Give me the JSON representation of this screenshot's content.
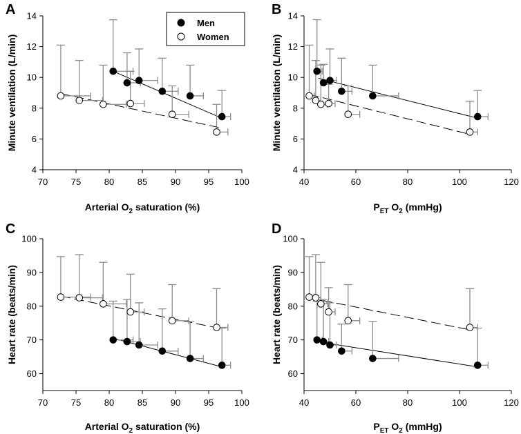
{
  "colors": {
    "men_marker": "#000000",
    "women_marker": "#ffffff",
    "error_bar": "#8c8c8c",
    "axis": "#000000"
  },
  "legend": {
    "men": "Men",
    "women": "Women",
    "placement": "top-right of panel A"
  },
  "chart_data": [
    {
      "panel": "A",
      "type": "scatter",
      "xlabel_parts": [
        "Arterial O",
        "2",
        " saturation (%)"
      ],
      "ylabel": "Minute ventilation (L/min)",
      "xlim": [
        70,
        100
      ],
      "ylim": [
        4,
        14
      ],
      "xticks": [
        70,
        75,
        80,
        85,
        90,
        95,
        100
      ],
      "yticks": [
        4,
        6,
        8,
        10,
        12,
        14
      ],
      "series": [
        {
          "name": "Men",
          "fill": "black",
          "line": "solid",
          "points": [
            {
              "x": 80.6,
              "y": 10.4,
              "y_err": 3.35,
              "x_err": 3.0
            },
            {
              "x": 82.7,
              "y": 9.65,
              "y_err": 1.95,
              "x_err": 2.0
            },
            {
              "x": 84.5,
              "y": 9.8,
              "y_err": 2.05,
              "x_err": 2.8
            },
            {
              "x": 88.0,
              "y": 9.1,
              "y_err": 2.15,
              "x_err": 2.4
            },
            {
              "x": 92.2,
              "y": 8.8,
              "y_err": 2.0,
              "x_err": 2.0
            },
            {
              "x": 97.0,
              "y": 7.45,
              "y_err": 1.7,
              "x_err": 1.3
            }
          ],
          "fit": [
            [
              80.6,
              10.4
            ],
            [
              97.0,
              7.35
            ]
          ]
        },
        {
          "name": "Women",
          "fill": "white",
          "line": "dashed",
          "points": [
            {
              "x": 72.7,
              "y": 8.8,
              "y_err": 3.3,
              "x_err": 4.5
            },
            {
              "x": 75.5,
              "y": 8.5,
              "y_err": 2.6,
              "x_err": 3.5
            },
            {
              "x": 79.1,
              "y": 8.25,
              "y_err": 2.55,
              "x_err": 3.5
            },
            {
              "x": 83.2,
              "y": 8.3,
              "y_err": 2.1,
              "x_err": 2.1
            },
            {
              "x": 89.5,
              "y": 7.6,
              "y_err": 1.85,
              "x_err": 2.5
            },
            {
              "x": 96.2,
              "y": 6.45,
              "y_err": 1.8,
              "x_err": 1.7
            }
          ],
          "fit": [
            [
              72.7,
              8.95
            ],
            [
              96.5,
              6.75
            ]
          ]
        }
      ]
    },
    {
      "panel": "B",
      "type": "scatter",
      "xlabel_parts": [
        "P",
        "ET",
        " O",
        "2",
        " (mmHg)"
      ],
      "ylabel": "Minute ventilation (L/min)",
      "xlim": [
        40,
        120
      ],
      "ylim": [
        4,
        14
      ],
      "xticks": [
        40,
        60,
        80,
        100,
        120
      ],
      "yticks": [
        4,
        6,
        8,
        10,
        12,
        14
      ],
      "series": [
        {
          "name": "Men",
          "fill": "black",
          "line": "solid",
          "points": [
            {
              "x": 45.0,
              "y": 10.4,
              "y_err": 3.35,
              "x_err": 2.0
            },
            {
              "x": 47.5,
              "y": 9.65,
              "y_err": 1.2,
              "x_err": 2.0
            },
            {
              "x": 50.0,
              "y": 9.8,
              "y_err": 2.05,
              "x_err": 2.5
            },
            {
              "x": 54.5,
              "y": 9.1,
              "y_err": 2.15,
              "x_err": 4.0
            },
            {
              "x": 66.5,
              "y": 8.8,
              "y_err": 2.0,
              "x_err": 10.0
            },
            {
              "x": 107.0,
              "y": 7.45,
              "y_err": 1.7,
              "x_err": 4.0
            }
          ],
          "fit": [
            [
              45.5,
              9.95
            ],
            [
              107.0,
              7.35
            ]
          ]
        },
        {
          "name": "Women",
          "fill": "white",
          "line": "dashed",
          "points": [
            {
              "x": 42.0,
              "y": 8.8,
              "y_err": 3.3,
              "x_err": 2.0
            },
            {
              "x": 44.5,
              "y": 8.5,
              "y_err": 2.6,
              "x_err": 2.0
            },
            {
              "x": 46.5,
              "y": 8.25,
              "y_err": 2.55,
              "x_err": 2.5
            },
            {
              "x": 49.5,
              "y": 8.3,
              "y_err": 1.25,
              "x_err": 2.5
            },
            {
              "x": 57.0,
              "y": 7.6,
              "y_err": 1.85,
              "x_err": 4.5
            },
            {
              "x": 104.0,
              "y": 6.45,
              "y_err": 2.0,
              "x_err": 3.0
            }
          ],
          "fit": [
            [
              42.0,
              8.9
            ],
            [
              104.0,
              6.3
            ]
          ]
        }
      ]
    },
    {
      "panel": "C",
      "type": "scatter",
      "xlabel_parts": [
        "Arterial O",
        "2",
        " saturation (%)"
      ],
      "ylabel": "Heart rate (beats/min)",
      "xlim": [
        70,
        100
      ],
      "ylim": [
        55,
        100
      ],
      "xticks": [
        70,
        75,
        80,
        85,
        90,
        95,
        100
      ],
      "yticks": [
        60,
        70,
        80,
        90,
        100
      ],
      "series": [
        {
          "name": "Men",
          "fill": "black",
          "line": "solid",
          "points": [
            {
              "x": 80.6,
              "y": 70.0,
              "y_err": 11.5,
              "x_err": 3.0
            },
            {
              "x": 82.7,
              "y": 69.5,
              "y_err": 12.5,
              "x_err": 2.0
            },
            {
              "x": 84.5,
              "y": 68.5,
              "y_err": 12.5,
              "x_err": 2.8
            },
            {
              "x": 88.0,
              "y": 66.7,
              "y_err": 12.5,
              "x_err": 2.4
            },
            {
              "x": 92.2,
              "y": 64.5,
              "y_err": 11.0,
              "x_err": 2.0
            },
            {
              "x": 97.0,
              "y": 62.5,
              "y_err": 11.0,
              "x_err": 1.3
            }
          ],
          "fit": [
            [
              80.6,
              70.5
            ],
            [
              97.0,
              62.0
            ]
          ]
        },
        {
          "name": "Women",
          "fill": "white",
          "line": "dashed",
          "points": [
            {
              "x": 72.7,
              "y": 82.7,
              "y_err": 12.0,
              "x_err": 4.5
            },
            {
              "x": 75.5,
              "y": 82.5,
              "y_err": 12.8,
              "x_err": 3.5
            },
            {
              "x": 79.1,
              "y": 80.7,
              "y_err": 12.3,
              "x_err": 3.5
            },
            {
              "x": 83.2,
              "y": 78.3,
              "y_err": 11.2,
              "x_err": 2.1
            },
            {
              "x": 89.5,
              "y": 75.7,
              "y_err": 10.7,
              "x_err": 2.5
            },
            {
              "x": 96.2,
              "y": 73.7,
              "y_err": 11.5,
              "x_err": 1.7
            }
          ],
          "fit": [
            [
              72.7,
              83.0
            ],
            [
              96.5,
              73.5
            ]
          ]
        }
      ]
    },
    {
      "panel": "D",
      "type": "scatter",
      "xlabel_parts": [
        "P",
        "ET",
        " O",
        "2",
        " (mmHg)"
      ],
      "ylabel": "Heart rate (beats/min)",
      "xlim": [
        40,
        120
      ],
      "ylim": [
        55,
        100
      ],
      "xticks": [
        40,
        60,
        80,
        100,
        120
      ],
      "yticks": [
        60,
        70,
        80,
        90,
        100
      ],
      "series": [
        {
          "name": "Men",
          "fill": "black",
          "line": "solid",
          "points": [
            {
              "x": 45.0,
              "y": 70.0,
              "y_err": 11.5,
              "x_err": 2.0
            },
            {
              "x": 47.5,
              "y": 69.5,
              "y_err": 12.5,
              "x_err": 2.0
            },
            {
              "x": 50.0,
              "y": 68.5,
              "y_err": 12.5,
              "x_err": 2.5
            },
            {
              "x": 54.5,
              "y": 66.7,
              "y_err": 8.0,
              "x_err": 4.0
            },
            {
              "x": 66.5,
              "y": 64.5,
              "y_err": 11.0,
              "x_err": 10.0
            },
            {
              "x": 107.0,
              "y": 62.5,
              "y_err": 11.0,
              "x_err": 4.0
            }
          ],
          "fit": [
            [
              45.0,
              69.5
            ],
            [
              107.0,
              62.0
            ]
          ]
        },
        {
          "name": "Women",
          "fill": "white",
          "line": "dashed",
          "points": [
            {
              "x": 42.0,
              "y": 82.7,
              "y_err": 12.0,
              "x_err": 2.0
            },
            {
              "x": 44.5,
              "y": 82.5,
              "y_err": 12.8,
              "x_err": 2.0
            },
            {
              "x": 46.5,
              "y": 80.7,
              "y_err": 12.3,
              "x_err": 2.5
            },
            {
              "x": 49.5,
              "y": 78.3,
              "y_err": 7.2,
              "x_err": 2.5
            },
            {
              "x": 57.0,
              "y": 75.7,
              "y_err": 10.7,
              "x_err": 4.5
            },
            {
              "x": 104.0,
              "y": 73.7,
              "y_err": 11.5,
              "x_err": 3.0
            }
          ],
          "fit": [
            [
              42.0,
              82.5
            ],
            [
              104.0,
              73.0
            ]
          ]
        }
      ]
    }
  ]
}
